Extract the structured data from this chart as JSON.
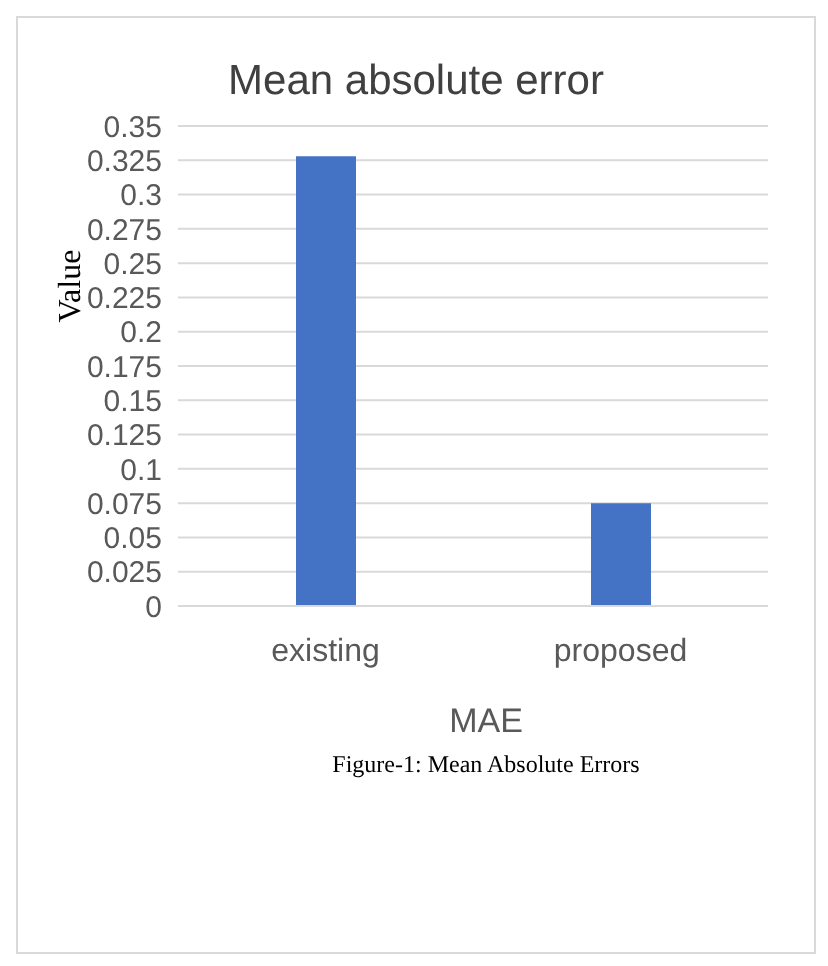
{
  "chart_data": {
    "type": "bar",
    "title": "Mean absolute error",
    "xlabel": "MAE",
    "ylabel": "Value",
    "categories": [
      "existing",
      "proposed"
    ],
    "values": [
      0.328,
      0.075
    ],
    "color": "#4472c4",
    "ylim": [
      0,
      0.35
    ],
    "yticks": [
      0,
      0.025,
      0.05,
      0.075,
      0.1,
      0.125,
      0.15,
      0.175,
      0.2,
      0.225,
      0.25,
      0.275,
      0.3,
      0.325,
      0.35
    ],
    "grid": "y",
    "annotations": [
      "Figure-1: Mean Absolute Errors"
    ]
  }
}
